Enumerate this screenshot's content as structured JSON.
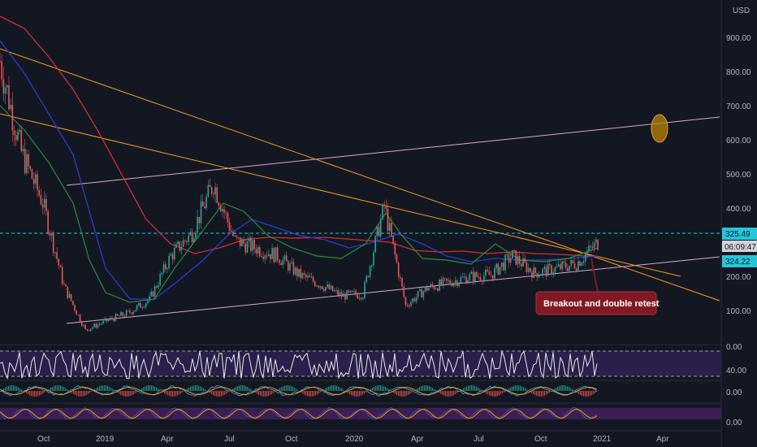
{
  "header": {
    "currency_label": "USD"
  },
  "price_axis": {
    "ticks": [
      "900.00",
      "800.00",
      "700.00",
      "600.00",
      "500.00",
      "400.00",
      "200.00",
      "100.00"
    ],
    "last_price": "325.49",
    "countdown": "06:09:47",
    "ma_value": "324.22"
  },
  "indicator_axis": {
    "rsi_upper": "0.00",
    "rsi_mid": "40.00",
    "macd_zero": "0.00",
    "stoch_zero": "0.00"
  },
  "time_axis": {
    "labels": [
      "Oct",
      "2019",
      "Apr",
      "Jul",
      "Oct",
      "2020",
      "Apr",
      "Jul",
      "Oct",
      "2021",
      "Apr"
    ]
  },
  "annotation": {
    "text": "Breakout and double retest"
  },
  "colors": {
    "background": "#131722",
    "candle_up": "#26a69a",
    "candle_down": "#ef5350",
    "ma_red": "#d32f2f",
    "ma_blue": "#2a3bd0",
    "ma_green": "#2e8b3a",
    "trendline_orange": "#f59a23",
    "channel_pink": "#d8a8d0",
    "price_line": "#26c6da",
    "ellipse_fill": "#b8860b",
    "callout_bg": "#801922",
    "rsi_band": "#2a1f4a",
    "stoch_band": "#3a1f55"
  },
  "chart_data": {
    "type": "line",
    "instrument": "candlestick price chart with moving averages and oscillator panes",
    "ylim": [
      70,
      960
    ],
    "x": [
      "2018-08",
      "2018-09",
      "2018-10",
      "2018-11",
      "2018-12",
      "2019-01",
      "2019-02",
      "2019-03",
      "2019-04",
      "2019-05",
      "2019-06",
      "2019-07",
      "2019-08",
      "2019-09",
      "2019-10",
      "2019-11",
      "2019-12",
      "2020-01",
      "2020-02",
      "2020-03",
      "2020-04",
      "2020-05",
      "2020-06",
      "2020-07",
      "2020-08",
      "2020-09",
      "2020-10",
      "2020-11",
      "2020-12"
    ],
    "series": [
      {
        "values": [
          800,
          560,
          430,
          210,
          95,
          120,
          140,
          175,
          290,
          350,
          480,
          330,
          310,
          290,
          240,
          215,
          185,
          190,
          420,
          160,
          205,
          220,
          235,
          240,
          290,
          245,
          255,
          270,
          325
        ]
      }
    ]
  }
}
